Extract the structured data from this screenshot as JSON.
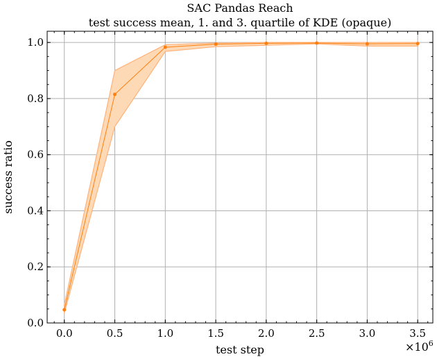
{
  "chart_data": {
    "type": "line",
    "title": "SAC Pandas Reach",
    "subtitle": "test success mean, 1. and 3. quartile of KDE (opaque)",
    "xlabel": "test step",
    "ylabel": "success ratio",
    "x_multiplier_label": "×10",
    "x_multiplier_exp": "6",
    "xlim": [
      -0.17,
      3.65
    ],
    "ylim": [
      0.0,
      1.04
    ],
    "xticks": [
      0.0,
      0.5,
      1.0,
      1.5,
      2.0,
      2.5,
      3.0,
      3.5
    ],
    "xtick_labels": [
      "0.0",
      "0.5",
      "1.0",
      "1.5",
      "2.0",
      "2.5",
      "3.0",
      "3.5"
    ],
    "yticks": [
      0.0,
      0.2,
      0.4,
      0.6,
      0.8,
      1.0
    ],
    "ytick_labels": [
      "0.0",
      "0.2",
      "0.4",
      "0.6",
      "0.8",
      "1.0"
    ],
    "grid": true,
    "color": "#ff7f0e",
    "fill_color": "#fdd9b5",
    "series": [
      {
        "name": "mean",
        "x": [
          0.0,
          0.5,
          1.0,
          1.5,
          2.0,
          2.5,
          3.0,
          3.5
        ],
        "values": [
          0.047,
          0.815,
          0.983,
          0.994,
          0.997,
          0.998,
          0.995,
          0.996
        ],
        "q1": [
          0.035,
          0.7,
          0.968,
          0.985,
          0.99,
          0.995,
          0.987,
          0.987
        ],
        "q3": [
          0.065,
          0.9,
          0.992,
          0.998,
          1.0,
          1.0,
          1.0,
          1.0
        ]
      }
    ]
  }
}
